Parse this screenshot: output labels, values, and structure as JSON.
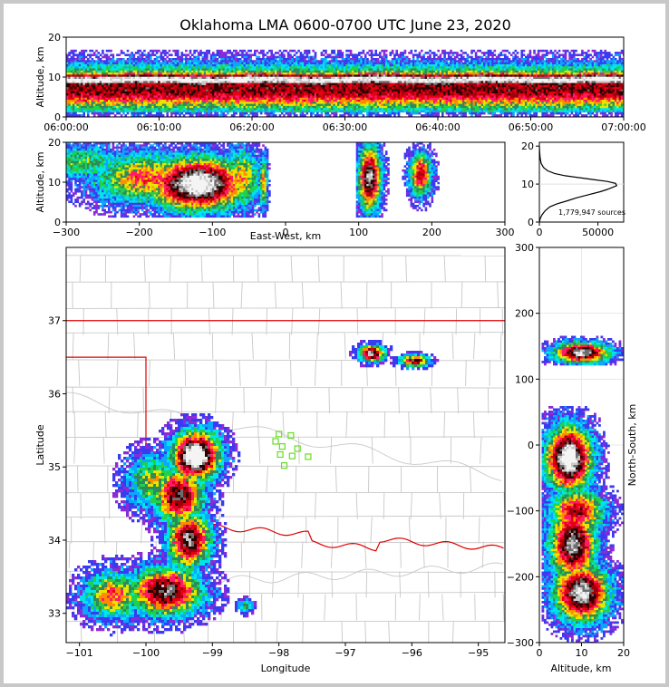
{
  "title": "Oklahoma LMA 0600-0700 UTC June 23, 2020",
  "chart_data": [
    {
      "type": "heatmap",
      "panel": "altitude-vs-time",
      "ylabel": "Altitude, km",
      "yticks": [
        "0",
        "10",
        "20"
      ],
      "xticks": [
        "06:00:00",
        "06:10:00",
        "06:20:00",
        "06:30:00",
        "06:40:00",
        "06:50:00",
        "07:00:00"
      ],
      "xlim": [
        "06:00:00",
        "07:00:00"
      ],
      "ylim": [
        0,
        20
      ]
    },
    {
      "type": "heatmap",
      "panel": "altitude-vs-east-west",
      "ylabel": "Altitude, km",
      "xlabel": "East-West, km",
      "xticks": [
        "−300",
        "−200",
        "−100",
        "0",
        "100",
        "200",
        "300"
      ],
      "yticks": [
        "0",
        "10",
        "20"
      ],
      "xlim": [
        -300,
        300
      ],
      "ylim": [
        0,
        20
      ]
    },
    {
      "type": "line",
      "panel": "source-altitude-histogram",
      "annotation": "1,779,947 sources",
      "xticks": [
        "0",
        "50000"
      ],
      "yticks": [
        "0",
        "10",
        "20"
      ],
      "xlim": [
        0,
        72000
      ],
      "ylim": [
        0,
        21
      ],
      "series": [
        {
          "x": [
            0,
            800,
            2500,
            5000,
            9000,
            15000,
            24000,
            32000,
            42000,
            52000,
            58000,
            63000,
            66000,
            65000,
            58000,
            46000,
            34000,
            22000,
            13000,
            7000,
            3500,
            1500,
            600,
            200,
            0
          ],
          "y": [
            0,
            1,
            2,
            3,
            4,
            4.8,
            5.6,
            6.4,
            7.2,
            8,
            8.6,
            9.2,
            9.6,
            10.2,
            10.7,
            11.2,
            11.7,
            12.2,
            12.8,
            13.5,
            14.4,
            15.5,
            17,
            18.5,
            20
          ]
        }
      ]
    },
    {
      "type": "heatmap",
      "panel": "plan-view-latitude-longitude",
      "xlabel": "Longitude",
      "ylabel": "Latitude",
      "xticks": [
        "−101",
        "−100",
        "−99",
        "−98",
        "−97",
        "−96",
        "−95"
      ],
      "yticks": [
        "33",
        "34",
        "35",
        "36",
        "37"
      ],
      "xlim": [
        -101.2,
        -94.6
      ],
      "ylim": [
        32.6,
        38
      ],
      "stations": [
        [
          -98.0,
          35.45
        ],
        [
          -97.82,
          35.43
        ],
        [
          -98.05,
          35.35
        ],
        [
          -97.95,
          35.28
        ],
        [
          -97.72,
          35.25
        ],
        [
          -97.98,
          35.17
        ],
        [
          -97.8,
          35.15
        ],
        [
          -97.56,
          35.14
        ],
        [
          -97.92,
          35.02
        ]
      ]
    },
    {
      "type": "heatmap",
      "panel": "north-south-vs-altitude",
      "ylabel": "North-South, km",
      "xlabel": "Altitude, km",
      "xticks": [
        "0",
        "10",
        "20"
      ],
      "yticks": [
        "−300",
        "−200",
        "−100",
        "0",
        "100",
        "200",
        "300"
      ],
      "xlim": [
        0,
        20
      ],
      "ylim": [
        -300,
        300
      ]
    }
  ]
}
